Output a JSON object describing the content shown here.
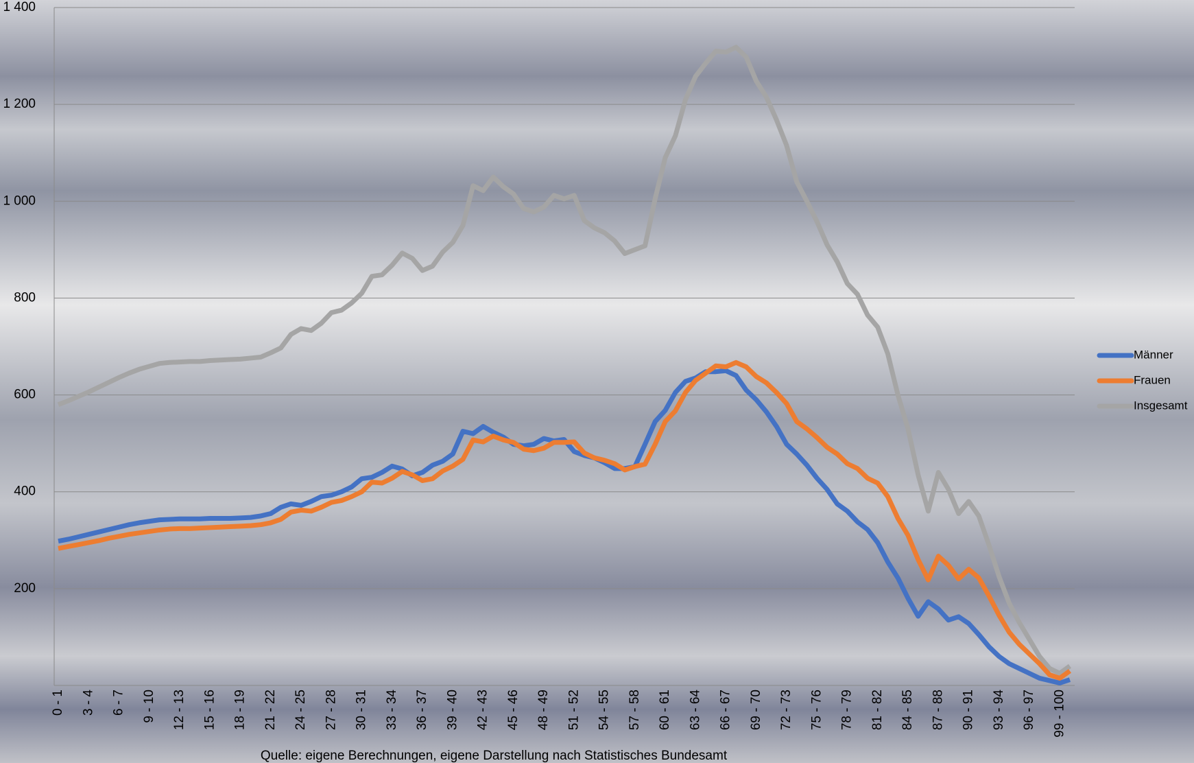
{
  "chart_data": {
    "type": "line",
    "source": "Quelle: eigene Berechnungen, eigene Darstellung nach Statistisches Bundesamt",
    "categories": [
      "0 - 1",
      null,
      null,
      "3 - 4",
      null,
      null,
      "6 - 7",
      null,
      null,
      "9 - 10",
      null,
      null,
      "12 - 13",
      null,
      null,
      "15 - 16",
      null,
      null,
      "18 - 19",
      null,
      null,
      "21 - 22",
      null,
      null,
      "24 - 25",
      null,
      null,
      "27 - 28",
      null,
      null,
      "30 - 31",
      null,
      null,
      "33 - 34",
      null,
      null,
      "36 - 37",
      null,
      null,
      "39 - 40",
      null,
      null,
      "42 - 43",
      null,
      null,
      "45 - 46",
      null,
      null,
      "48 - 49",
      null,
      null,
      "51 - 52",
      null,
      null,
      "54 - 55",
      null,
      null,
      "57 - 58",
      null,
      null,
      "60 - 61",
      null,
      null,
      "63 - 64",
      null,
      null,
      "66 - 67",
      null,
      null,
      "69 - 70",
      null,
      null,
      "72 - 73",
      null,
      null,
      "75 - 76",
      null,
      null,
      "78 - 79",
      null,
      null,
      "81 - 82",
      null,
      null,
      "84 - 85",
      null,
      null,
      "87 - 88",
      null,
      null,
      "90 - 91",
      null,
      null,
      "93 - 94",
      null,
      null,
      "96 - 97",
      null,
      null,
      "99 - 100",
      null
    ],
    "series": [
      {
        "name": "Männer",
        "color": "#4472c4",
        "values": [
          298,
          302,
          307,
          312,
          317,
          322,
          327,
          332,
          336,
          339,
          342,
          343,
          344,
          344,
          344,
          345,
          345,
          345,
          346,
          347,
          350,
          355,
          368,
          375,
          372,
          380,
          390,
          393,
          400,
          410,
          427,
          430,
          440,
          453,
          447,
          433,
          440,
          455,
          463,
          478,
          525,
          520,
          535,
          523,
          513,
          498,
          495,
          498,
          510,
          505,
          508,
          483,
          475,
          470,
          460,
          448,
          448,
          452,
          498,
          545,
          568,
          605,
          628,
          635,
          648,
          648,
          650,
          640,
          610,
          590,
          565,
          535,
          498,
          478,
          455,
          428,
          405,
          375,
          360,
          338,
          322,
          295,
          255,
          222,
          180,
          143,
          173,
          158,
          135,
          142,
          128,
          105,
          80,
          60,
          45,
          35,
          25,
          15,
          10,
          5,
          12
        ]
      },
      {
        "name": "Frauen",
        "color": "#ed7d31",
        "values": [
          283,
          287,
          291,
          295,
          299,
          304,
          308,
          312,
          315,
          318,
          321,
          323,
          324,
          324,
          325,
          326,
          327,
          328,
          329,
          330,
          332,
          336,
          343,
          358,
          362,
          360,
          368,
          378,
          382,
          390,
          400,
          420,
          418,
          428,
          442,
          435,
          423,
          427,
          443,
          453,
          467,
          507,
          503,
          515,
          507,
          502,
          488,
          485,
          490,
          502,
          502,
          503,
          480,
          470,
          465,
          458,
          445,
          452,
          457,
          498,
          545,
          567,
          605,
          630,
          645,
          660,
          658,
          667,
          658,
          638,
          625,
          605,
          582,
          545,
          530,
          512,
          492,
          478,
          458,
          448,
          428,
          418,
          390,
          345,
          310,
          260,
          218,
          267,
          248,
          220,
          240,
          222,
          185,
          145,
          110,
          85,
          65,
          45,
          22,
          15,
          30
        ]
      },
      {
        "name": "Insgesamt",
        "color": "#a5a5a5",
        "values": [
          580,
          588,
          597,
          606,
          616,
          626,
          636,
          645,
          653,
          659,
          665,
          667,
          668,
          669,
          669,
          671,
          672,
          673,
          674,
          676,
          678,
          687,
          697,
          725,
          737,
          733,
          748,
          770,
          775,
          790,
          810,
          845,
          848,
          868,
          893,
          882,
          857,
          866,
          895,
          915,
          950,
          1032,
          1022,
          1050,
          1030,
          1015,
          985,
          978,
          988,
          1012,
          1005,
          1012,
          960,
          945,
          935,
          918,
          892,
          900,
          908,
          1005,
          1090,
          1135,
          1210,
          1258,
          1285,
          1310,
          1308,
          1318,
          1298,
          1248,
          1215,
          1168,
          1115,
          1040,
          1000,
          958,
          910,
          875,
          830,
          808,
          765,
          740,
          685,
          600,
          530,
          435,
          360,
          440,
          405,
          355,
          380,
          350,
          290,
          225,
          170,
          130,
          95,
          60,
          35,
          25,
          40
        ]
      }
    ],
    "ylim": [
      0,
      1400
    ],
    "yticks": [
      200,
      400,
      600,
      800,
      {
        "value": 1000,
        "label": "1 000"
      },
      {
        "value": 1200,
        "label": "1 200"
      },
      {
        "value": 1400,
        "label": "1 400"
      }
    ],
    "grid": true,
    "legend": "right"
  }
}
